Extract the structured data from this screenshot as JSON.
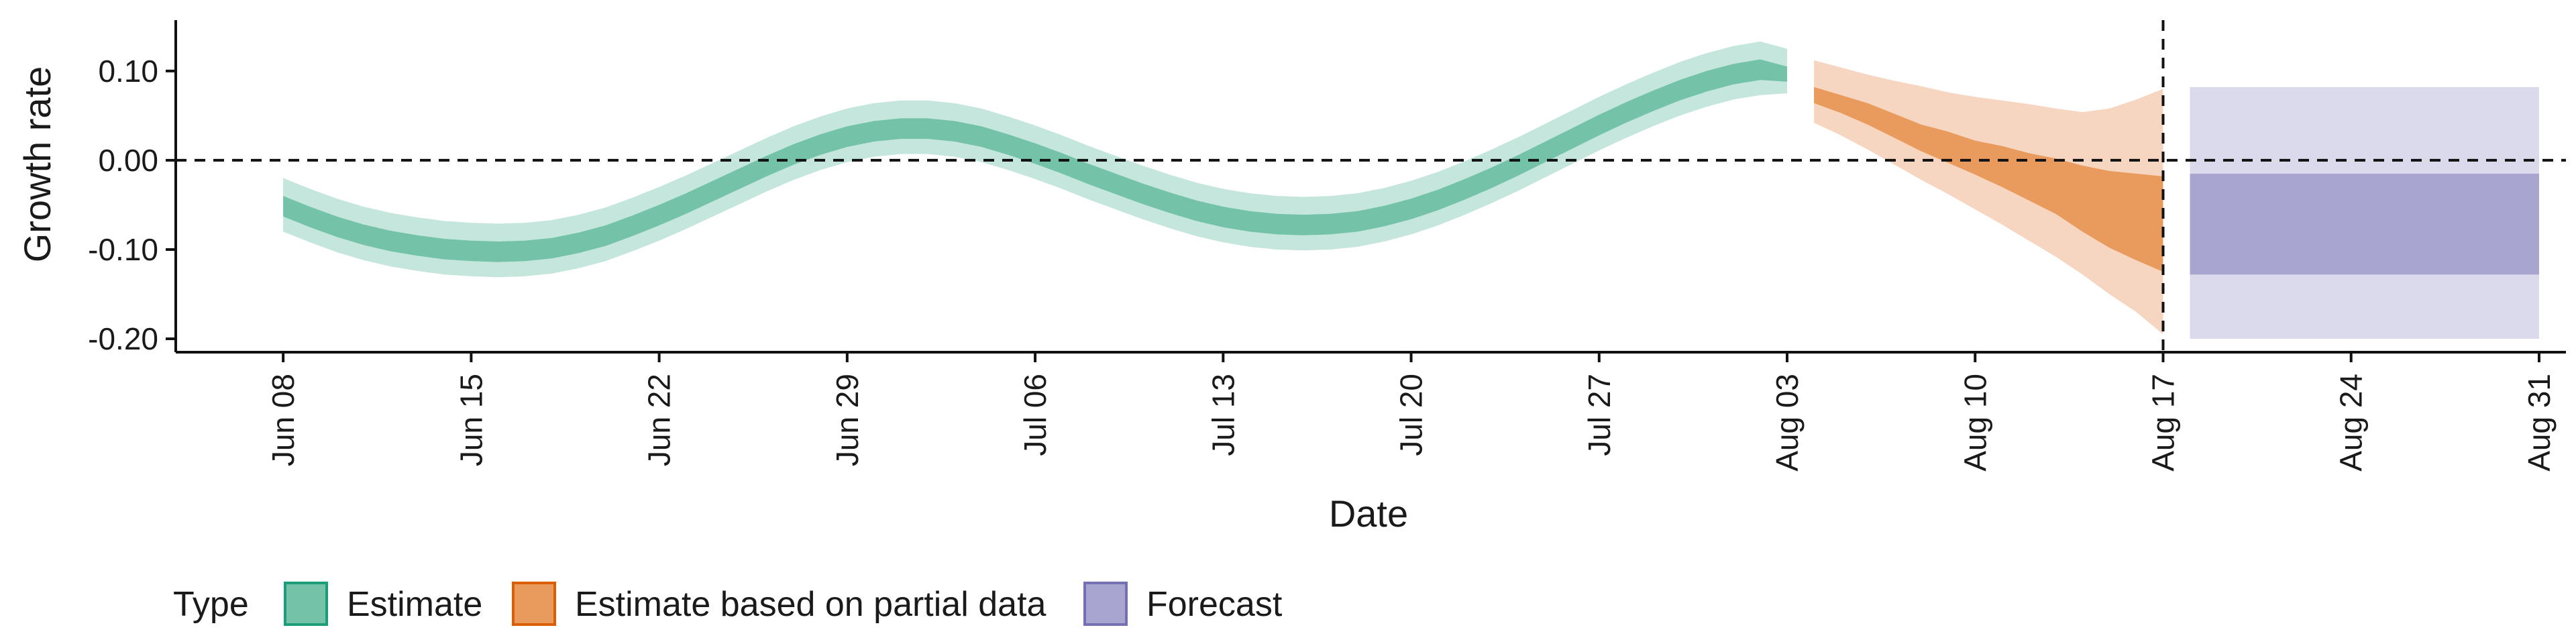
{
  "chart_data": {
    "type": "area",
    "xlabel": "Date",
    "ylabel": "Growth rate",
    "x_ticks": [
      "2020-06-08",
      "2020-06-15",
      "2020-06-22",
      "2020-06-29",
      "2020-07-06",
      "2020-07-13",
      "2020-07-20",
      "2020-07-27",
      "2020-08-03",
      "2020-08-10",
      "2020-08-17",
      "2020-08-24",
      "2020-08-31"
    ],
    "x_tick_labels": [
      "Jun 08",
      "Jun 15",
      "Jun 22",
      "Jun 29",
      "Jul 06",
      "Jul 13",
      "Jul 20",
      "Jul 27",
      "Aug 03",
      "Aug 10",
      "Aug 17",
      "Aug 24",
      "Aug 31"
    ],
    "xlim": [
      "2020-06-04",
      "2020-09-01"
    ],
    "y_ticks": [
      0.1,
      0.0,
      -0.1,
      -0.2
    ],
    "y_tick_labels": [
      "0.10",
      "0.00",
      "-0.10",
      "-0.20"
    ],
    "ylim": [
      -0.215,
      0.157
    ],
    "reference_lines": {
      "y": 0.0,
      "x": "2020-08-17"
    },
    "grid": false,
    "legend": {
      "title": "Type",
      "position": "bottom-left",
      "entries": [
        {
          "label": "Estimate",
          "color": "#74c3a8",
          "border": "#1b9e77"
        },
        {
          "label": "Estimate based on partial data",
          "color": "#e99a5d",
          "border": "#d95f02"
        },
        {
          "label": "Forecast",
          "color": "#a9a5d1",
          "border": "#7570b3"
        }
      ]
    },
    "series": [
      {
        "name": "Estimate",
        "inner_color": "#74c3a8",
        "outer_color": "#c4e6dc",
        "x": [
          "2020-06-08",
          "2020-06-09",
          "2020-06-10",
          "2020-06-11",
          "2020-06-12",
          "2020-06-13",
          "2020-06-14",
          "2020-06-15",
          "2020-06-16",
          "2020-06-17",
          "2020-06-18",
          "2020-06-19",
          "2020-06-20",
          "2020-06-21",
          "2020-06-22",
          "2020-06-23",
          "2020-06-24",
          "2020-06-25",
          "2020-06-26",
          "2020-06-27",
          "2020-06-28",
          "2020-06-29",
          "2020-06-30",
          "2020-07-01",
          "2020-07-02",
          "2020-07-03",
          "2020-07-04",
          "2020-07-05",
          "2020-07-06",
          "2020-07-07",
          "2020-07-08",
          "2020-07-09",
          "2020-07-10",
          "2020-07-11",
          "2020-07-12",
          "2020-07-13",
          "2020-07-14",
          "2020-07-15",
          "2020-07-16",
          "2020-07-17",
          "2020-07-18",
          "2020-07-19",
          "2020-07-20",
          "2020-07-21",
          "2020-07-22",
          "2020-07-23",
          "2020-07-24",
          "2020-07-25",
          "2020-07-26",
          "2020-07-27",
          "2020-07-28",
          "2020-07-29",
          "2020-07-30",
          "2020-07-31",
          "2020-08-01",
          "2020-08-02",
          "2020-08-03"
        ],
        "lower_outer": [
          -0.08,
          -0.092,
          -0.103,
          -0.112,
          -0.119,
          -0.124,
          -0.128,
          -0.13,
          -0.131,
          -0.13,
          -0.127,
          -0.121,
          -0.113,
          -0.102,
          -0.09,
          -0.077,
          -0.063,
          -0.049,
          -0.035,
          -0.022,
          -0.011,
          -0.002,
          0.004,
          0.007,
          0.007,
          0.004,
          -0.002,
          -0.011,
          -0.021,
          -0.032,
          -0.044,
          -0.055,
          -0.066,
          -0.076,
          -0.085,
          -0.092,
          -0.097,
          -0.1,
          -0.101,
          -0.1,
          -0.097,
          -0.091,
          -0.083,
          -0.073,
          -0.061,
          -0.048,
          -0.034,
          -0.019,
          -0.004,
          0.011,
          0.025,
          0.038,
          0.05,
          0.06,
          0.068,
          0.073,
          0.075
        ],
        "lower_inner": [
          -0.063,
          -0.075,
          -0.086,
          -0.095,
          -0.102,
          -0.107,
          -0.111,
          -0.113,
          -0.114,
          -0.113,
          -0.11,
          -0.104,
          -0.096,
          -0.085,
          -0.073,
          -0.06,
          -0.046,
          -0.032,
          -0.018,
          -0.005,
          0.006,
          0.015,
          0.021,
          0.024,
          0.024,
          0.021,
          0.015,
          0.006,
          -0.004,
          -0.015,
          -0.027,
          -0.038,
          -0.049,
          -0.059,
          -0.068,
          -0.075,
          -0.08,
          -0.083,
          -0.084,
          -0.083,
          -0.08,
          -0.074,
          -0.066,
          -0.056,
          -0.044,
          -0.031,
          -0.017,
          -0.002,
          0.013,
          0.028,
          0.042,
          0.055,
          0.067,
          0.077,
          0.085,
          0.09,
          0.088
        ],
        "upper_inner": [
          -0.04,
          -0.052,
          -0.063,
          -0.072,
          -0.079,
          -0.084,
          -0.088,
          -0.09,
          -0.091,
          -0.09,
          -0.087,
          -0.081,
          -0.073,
          -0.062,
          -0.05,
          -0.037,
          -0.023,
          -0.009,
          0.005,
          0.018,
          0.029,
          0.038,
          0.044,
          0.047,
          0.047,
          0.044,
          0.038,
          0.029,
          0.019,
          0.008,
          -0.004,
          -0.015,
          -0.026,
          -0.036,
          -0.045,
          -0.052,
          -0.057,
          -0.06,
          -0.061,
          -0.06,
          -0.057,
          -0.051,
          -0.043,
          -0.033,
          -0.021,
          -0.008,
          0.006,
          0.021,
          0.036,
          0.051,
          0.065,
          0.078,
          0.09,
          0.1,
          0.108,
          0.113,
          0.105
        ],
        "upper_outer": [
          -0.02,
          -0.032,
          -0.043,
          -0.052,
          -0.059,
          -0.064,
          -0.068,
          -0.07,
          -0.071,
          -0.07,
          -0.067,
          -0.061,
          -0.053,
          -0.042,
          -0.03,
          -0.017,
          -0.003,
          0.011,
          0.025,
          0.038,
          0.049,
          0.058,
          0.064,
          0.067,
          0.067,
          0.064,
          0.058,
          0.049,
          0.039,
          0.028,
          0.016,
          0.005,
          -0.006,
          -0.016,
          -0.025,
          -0.032,
          -0.037,
          -0.04,
          -0.041,
          -0.04,
          -0.037,
          -0.031,
          -0.023,
          -0.013,
          -0.001,
          0.012,
          0.026,
          0.041,
          0.056,
          0.071,
          0.085,
          0.098,
          0.11,
          0.12,
          0.128,
          0.133,
          0.125
        ]
      },
      {
        "name": "Estimate based on partial data",
        "inner_color": "#e99a5d",
        "outer_color": "#f6d6c0",
        "x": [
          "2020-08-04",
          "2020-08-05",
          "2020-08-06",
          "2020-08-07",
          "2020-08-08",
          "2020-08-09",
          "2020-08-10",
          "2020-08-11",
          "2020-08-12",
          "2020-08-13",
          "2020-08-14",
          "2020-08-15",
          "2020-08-16",
          "2020-08-17"
        ],
        "lower_outer": [
          0.042,
          0.028,
          0.012,
          -0.005,
          -0.022,
          -0.038,
          -0.055,
          -0.072,
          -0.09,
          -0.108,
          -0.128,
          -0.15,
          -0.17,
          -0.195
        ],
        "lower_inner": [
          0.064,
          0.053,
          0.04,
          0.025,
          0.01,
          -0.003,
          -0.016,
          -0.03,
          -0.045,
          -0.06,
          -0.08,
          -0.098,
          -0.112,
          -0.125
        ],
        "upper_inner": [
          0.082,
          0.073,
          0.064,
          0.052,
          0.04,
          0.032,
          0.022,
          0.016,
          0.008,
          0.002,
          -0.006,
          -0.012,
          -0.015,
          -0.018
        ],
        "upper_outer": [
          0.112,
          0.104,
          0.096,
          0.089,
          0.083,
          0.076,
          0.071,
          0.067,
          0.063,
          0.058,
          0.054,
          0.058,
          0.068,
          0.08
        ]
      },
      {
        "name": "Forecast",
        "inner_color": "#a9a5d1",
        "outer_color": "#dbdaed",
        "x": [
          "2020-08-18",
          "2020-08-31"
        ],
        "lower_outer": [
          -0.2,
          -0.2
        ],
        "lower_inner": [
          -0.128,
          -0.128
        ],
        "upper_inner": [
          -0.015,
          -0.015
        ],
        "upper_outer": [
          0.082,
          0.082
        ]
      }
    ]
  }
}
